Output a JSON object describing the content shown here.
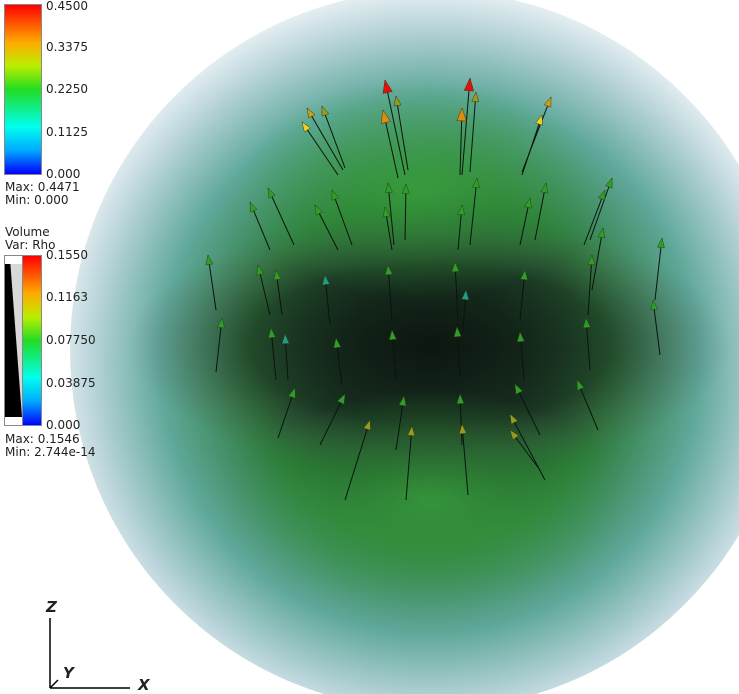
{
  "vector_legend": {
    "ticks": [
      "0.4500",
      "0.3375",
      "0.2250",
      "0.1125",
      "0.000"
    ],
    "max_label": "Max:",
    "max_value": "0.4471",
    "min_label": "Min:",
    "min_value": "0.000"
  },
  "volume_legend": {
    "title": "Volume",
    "var_label": "Var: Rho",
    "ticks": [
      "0.1550",
      "0.1163",
      "0.07750",
      "0.03875",
      "0.000"
    ],
    "max_label": "Max:",
    "max_value": "0.1546",
    "min_label": "Min:",
    "min_value": "2.744e-14"
  },
  "triad": {
    "z": "Z",
    "y": "Y",
    "x": "X"
  },
  "colors": {
    "volume_core": "#0c1f14",
    "volume_mid": "#2f8f3a",
    "volume_edge": "#e6f0f2",
    "arrow_high": "#e01010",
    "arrow_mid": "#9a9a20",
    "arrow_low": "#2aa02a"
  }
}
